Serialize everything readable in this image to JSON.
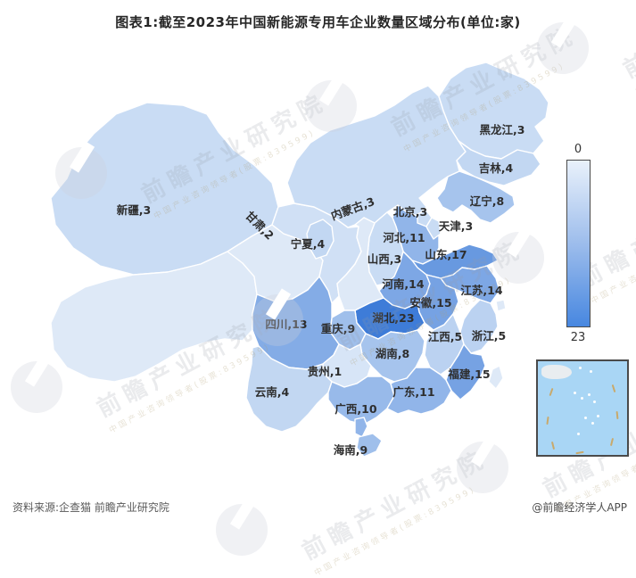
{
  "title": "图表1:截至2023年中国新能源专用车企业数量区域分布(单位:家)",
  "legend": {
    "min_label": "0",
    "max_label": "23"
  },
  "footer": {
    "source": "资料来源:企查猫 前瞻产业研究院",
    "credit": "@前瞻经济学人APP"
  },
  "watermark": {
    "brand": "前瞻产业研究院",
    "tagline": "中国产业咨询领导者(股票:839599)"
  },
  "colors": {
    "scale_min": "#DEEAF8",
    "scale_max": "#3E7CD8",
    "no_data": "#DEE9F7",
    "inset_sea": "#A9D6F5"
  },
  "chart_data": {
    "type": "heatmap",
    "subtype": "china-choropleth-map",
    "title": "截至2023年中国新能源专用车企业数量区域分布",
    "unit": "家",
    "value_range": [
      0,
      23
    ],
    "legend_position": "right",
    "regions": [
      {
        "name": "黑龙江",
        "value": 3
      },
      {
        "name": "吉林",
        "value": 4
      },
      {
        "name": "辽宁",
        "value": 8
      },
      {
        "name": "内蒙古",
        "value": 3
      },
      {
        "name": "新疆",
        "value": 3
      },
      {
        "name": "甘肃",
        "value": 2
      },
      {
        "name": "宁夏",
        "value": 4
      },
      {
        "name": "北京",
        "value": 3
      },
      {
        "name": "天津",
        "value": 3
      },
      {
        "name": "河北",
        "value": 11
      },
      {
        "name": "山西",
        "value": 3
      },
      {
        "name": "山东",
        "value": 17
      },
      {
        "name": "河南",
        "value": 14
      },
      {
        "name": "江苏",
        "value": 14
      },
      {
        "name": "安徽",
        "value": 15
      },
      {
        "name": "湖北",
        "value": 23
      },
      {
        "name": "四川",
        "value": 13
      },
      {
        "name": "重庆",
        "value": 9
      },
      {
        "name": "江西",
        "value": 5
      },
      {
        "name": "浙江",
        "value": 5
      },
      {
        "name": "湖南",
        "value": 8
      },
      {
        "name": "贵州",
        "value": 1
      },
      {
        "name": "福建",
        "value": 15
      },
      {
        "name": "云南",
        "value": 4
      },
      {
        "name": "广东",
        "value": 11
      },
      {
        "name": "广西",
        "value": 10
      },
      {
        "name": "海南",
        "value": 9
      }
    ]
  }
}
